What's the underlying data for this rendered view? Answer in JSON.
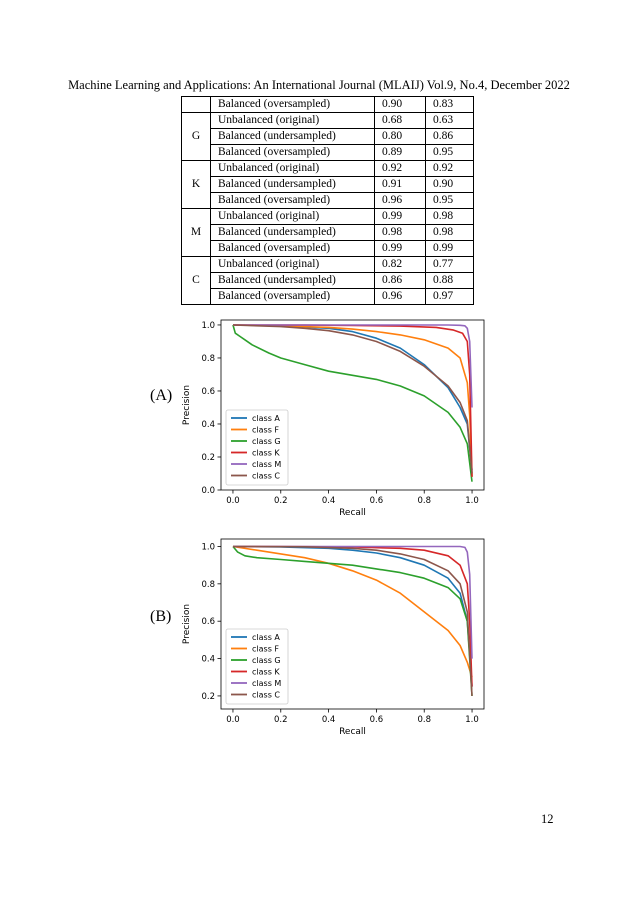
{
  "header": "Machine Learning and Applications: An International Journal (MLAIJ) Vol.9, No.4, December 2022",
  "page_number": "12",
  "table": {
    "groups": [
      {
        "class": "",
        "rows": [
          [
            "Balanced (oversampled)",
            "0.90",
            "0.83"
          ]
        ]
      },
      {
        "class": "G",
        "rows": [
          [
            "Unbalanced (original)",
            "0.68",
            "0.63"
          ],
          [
            "Balanced (undersampled)",
            "0.80",
            "0.86"
          ],
          [
            "Balanced (oversampled)",
            "0.89",
            "0.95"
          ]
        ]
      },
      {
        "class": "K",
        "rows": [
          [
            "Unbalanced (original)",
            "0.92",
            "0.92"
          ],
          [
            "Balanced (undersampled)",
            "0.91",
            "0.90"
          ],
          [
            "Balanced (oversampled)",
            "0.96",
            "0.95"
          ]
        ]
      },
      {
        "class": "M",
        "rows": [
          [
            "Unbalanced (original)",
            "0.99",
            "0.98"
          ],
          [
            "Balanced (undersampled)",
            "0.98",
            "0.98"
          ],
          [
            "Balanced (oversampled)",
            "0.99",
            "0.99"
          ]
        ]
      },
      {
        "class": "C",
        "rows": [
          [
            "Unbalanced (original)",
            "0.82",
            "0.77"
          ],
          [
            "Balanced (undersampled)",
            "0.86",
            "0.88"
          ],
          [
            "Balanced (oversampled)",
            "0.96",
            "0.97"
          ]
        ]
      }
    ]
  },
  "chart_data": [
    {
      "type": "line",
      "panel_label": "(A)",
      "xlabel": "Recall",
      "ylabel": "Precision",
      "xlim": [
        -0.05,
        1.05
      ],
      "ylim": [
        0.0,
        1.03
      ],
      "xticks": [
        "0.0",
        "0.2",
        "0.4",
        "0.6",
        "0.8",
        "1.0"
      ],
      "yticks": [
        "0.0",
        "0.2",
        "0.4",
        "0.6",
        "0.8",
        "1.0"
      ],
      "legend_position": "lower-left",
      "series": [
        {
          "name": "class A",
          "color": "#1f77b4",
          "points": [
            [
              0,
              1.0
            ],
            [
              0.2,
              0.995
            ],
            [
              0.4,
              0.98
            ],
            [
              0.5,
              0.96
            ],
            [
              0.6,
              0.92
            ],
            [
              0.7,
              0.86
            ],
            [
              0.8,
              0.76
            ],
            [
              0.9,
              0.62
            ],
            [
              0.95,
              0.5
            ],
            [
              0.98,
              0.4
            ],
            [
              0.99,
              0.25
            ],
            [
              1.0,
              0.12
            ]
          ]
        },
        {
          "name": "class F",
          "color": "#ff7f0e",
          "points": [
            [
              0,
              1.0
            ],
            [
              0.2,
              0.995
            ],
            [
              0.4,
              0.985
            ],
            [
              0.5,
              0.975
            ],
            [
              0.6,
              0.96
            ],
            [
              0.7,
              0.94
            ],
            [
              0.8,
              0.91
            ],
            [
              0.9,
              0.86
            ],
            [
              0.95,
              0.8
            ],
            [
              0.98,
              0.65
            ],
            [
              0.99,
              0.45
            ],
            [
              1.0,
              0.08
            ]
          ]
        },
        {
          "name": "class G",
          "color": "#2ca02c",
          "points": [
            [
              0,
              1.0
            ],
            [
              0.01,
              0.95
            ],
            [
              0.03,
              0.93
            ],
            [
              0.05,
              0.91
            ],
            [
              0.08,
              0.88
            ],
            [
              0.15,
              0.83
            ],
            [
              0.2,
              0.8
            ],
            [
              0.3,
              0.76
            ],
            [
              0.4,
              0.72
            ],
            [
              0.5,
              0.695
            ],
            [
              0.6,
              0.67
            ],
            [
              0.7,
              0.63
            ],
            [
              0.8,
              0.57
            ],
            [
              0.9,
              0.47
            ],
            [
              0.95,
              0.38
            ],
            [
              0.98,
              0.28
            ],
            [
              1.0,
              0.05
            ]
          ]
        },
        {
          "name": "class K",
          "color": "#d62728",
          "points": [
            [
              0,
              1.0
            ],
            [
              0.3,
              0.999
            ],
            [
              0.5,
              0.997
            ],
            [
              0.7,
              0.993
            ],
            [
              0.85,
              0.985
            ],
            [
              0.92,
              0.97
            ],
            [
              0.96,
              0.95
            ],
            [
              0.98,
              0.9
            ],
            [
              0.99,
              0.7
            ],
            [
              1.0,
              0.08
            ]
          ]
        },
        {
          "name": "class M",
          "color": "#9467bd",
          "points": [
            [
              0,
              1.0
            ],
            [
              0.5,
              1.0
            ],
            [
              0.9,
              1.0
            ],
            [
              0.95,
              0.998
            ],
            [
              0.97,
              0.995
            ],
            [
              0.98,
              0.98
            ],
            [
              0.99,
              0.9
            ],
            [
              1.0,
              0.5
            ]
          ]
        },
        {
          "name": "class C",
          "color": "#8c564b",
          "points": [
            [
              0,
              1.0
            ],
            [
              0.2,
              0.99
            ],
            [
              0.3,
              0.98
            ],
            [
              0.4,
              0.965
            ],
            [
              0.5,
              0.94
            ],
            [
              0.6,
              0.9
            ],
            [
              0.7,
              0.84
            ],
            [
              0.8,
              0.75
            ],
            [
              0.9,
              0.63
            ],
            [
              0.95,
              0.53
            ],
            [
              0.98,
              0.42
            ],
            [
              1.0,
              0.1
            ]
          ]
        }
      ]
    },
    {
      "type": "line",
      "panel_label": "(B)",
      "xlabel": "Recall",
      "ylabel": "Precision",
      "xlim": [
        -0.05,
        1.05
      ],
      "ylim": [
        0.13,
        1.04
      ],
      "xticks": [
        "0.0",
        "0.2",
        "0.4",
        "0.6",
        "0.8",
        "1.0"
      ],
      "yticks": [
        "0.2",
        "0.4",
        "0.6",
        "0.8",
        "1.0"
      ],
      "legend_position": "lower-left",
      "series": [
        {
          "name": "class A",
          "color": "#1f77b4",
          "points": [
            [
              0,
              1.0
            ],
            [
              0.2,
              0.997
            ],
            [
              0.4,
              0.99
            ],
            [
              0.5,
              0.98
            ],
            [
              0.6,
              0.965
            ],
            [
              0.7,
              0.94
            ],
            [
              0.8,
              0.9
            ],
            [
              0.9,
              0.83
            ],
            [
              0.95,
              0.75
            ],
            [
              0.98,
              0.6
            ],
            [
              1.0,
              0.25
            ]
          ]
        },
        {
          "name": "class F",
          "color": "#ff7f0e",
          "points": [
            [
              0,
              1.0
            ],
            [
              0.1,
              0.98
            ],
            [
              0.2,
              0.96
            ],
            [
              0.3,
              0.94
            ],
            [
              0.4,
              0.91
            ],
            [
              0.5,
              0.87
            ],
            [
              0.6,
              0.82
            ],
            [
              0.7,
              0.75
            ],
            [
              0.8,
              0.65
            ],
            [
              0.9,
              0.55
            ],
            [
              0.95,
              0.47
            ],
            [
              0.98,
              0.38
            ],
            [
              1.0,
              0.3
            ]
          ]
        },
        {
          "name": "class G",
          "color": "#2ca02c",
          "points": [
            [
              0,
              1.0
            ],
            [
              0.02,
              0.97
            ],
            [
              0.05,
              0.95
            ],
            [
              0.1,
              0.94
            ],
            [
              0.2,
              0.93
            ],
            [
              0.3,
              0.92
            ],
            [
              0.4,
              0.91
            ],
            [
              0.5,
              0.9
            ],
            [
              0.6,
              0.88
            ],
            [
              0.7,
              0.86
            ],
            [
              0.8,
              0.83
            ],
            [
              0.9,
              0.78
            ],
            [
              0.95,
              0.72
            ],
            [
              0.98,
              0.6
            ],
            [
              1.0,
              0.2
            ]
          ]
        },
        {
          "name": "class K",
          "color": "#d62728",
          "points": [
            [
              0,
              1.0
            ],
            [
              0.3,
              0.999
            ],
            [
              0.5,
              0.997
            ],
            [
              0.7,
              0.99
            ],
            [
              0.8,
              0.98
            ],
            [
              0.9,
              0.95
            ],
            [
              0.95,
              0.9
            ],
            [
              0.98,
              0.8
            ],
            [
              0.99,
              0.6
            ],
            [
              1.0,
              0.25
            ]
          ]
        },
        {
          "name": "class M",
          "color": "#9467bd",
          "points": [
            [
              0,
              1.0
            ],
            [
              0.5,
              1.0
            ],
            [
              0.95,
              1.0
            ],
            [
              0.97,
              0.995
            ],
            [
              0.98,
              0.97
            ],
            [
              0.99,
              0.85
            ],
            [
              1.0,
              0.4
            ]
          ]
        },
        {
          "name": "class C",
          "color": "#8c564b",
          "points": [
            [
              0,
              1.0
            ],
            [
              0.3,
              0.998
            ],
            [
              0.5,
              0.99
            ],
            [
              0.6,
              0.98
            ],
            [
              0.7,
              0.96
            ],
            [
              0.8,
              0.93
            ],
            [
              0.9,
              0.87
            ],
            [
              0.95,
              0.8
            ],
            [
              0.98,
              0.65
            ],
            [
              1.0,
              0.2
            ]
          ]
        }
      ]
    }
  ]
}
